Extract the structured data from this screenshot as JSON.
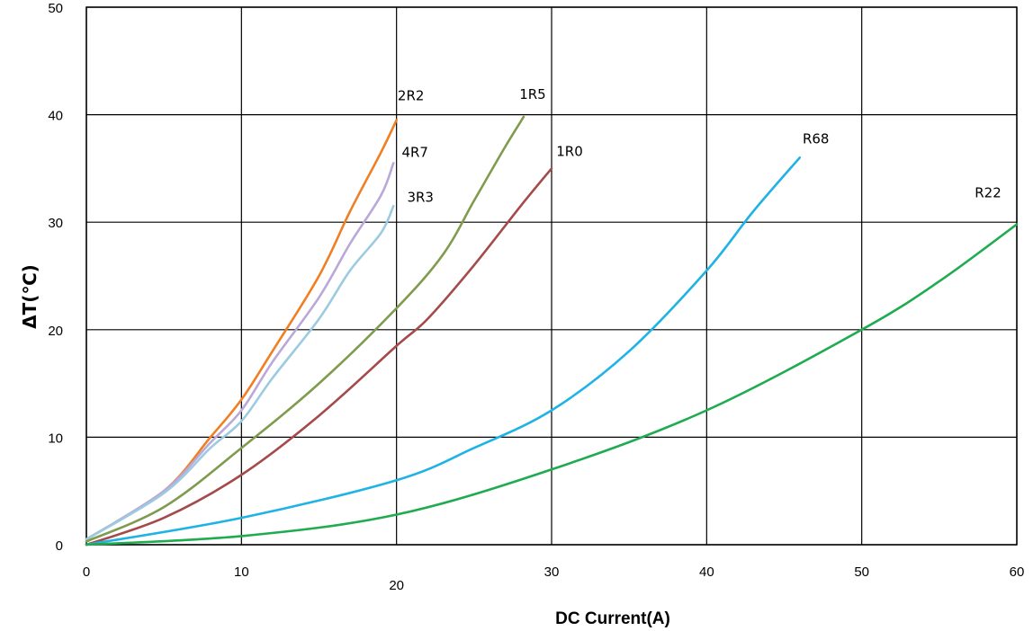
{
  "chart_data": {
    "type": "line",
    "xlabel": "DC Current(A)",
    "ylabel": "ΔT(℃)",
    "xlim": [
      0,
      60
    ],
    "ylim": [
      0,
      50
    ],
    "x_ticks": [
      0,
      10,
      20,
      30,
      40,
      50,
      60
    ],
    "y_ticks": [
      0,
      10,
      20,
      30,
      40,
      50
    ],
    "grid": true,
    "series": [
      {
        "name": "2R2",
        "color": "#f07f24",
        "x": [
          0,
          5,
          8,
          10,
          12,
          15,
          17,
          19,
          20
        ],
        "y": [
          0.5,
          5,
          10,
          13.5,
          18,
          25,
          31,
          36.5,
          39.5
        ]
      },
      {
        "name": "4R7",
        "color": "#b9a8d8",
        "x": [
          0,
          5,
          8,
          10,
          12,
          15,
          17,
          19,
          19.8
        ],
        "y": [
          0.5,
          5,
          9.5,
          12.5,
          17,
          23,
          28,
          32.5,
          35.5
        ]
      },
      {
        "name": "3R3",
        "color": "#9ccbe0",
        "x": [
          0,
          5,
          8,
          10,
          12,
          15,
          17,
          19,
          19.8
        ],
        "y": [
          0.5,
          4.8,
          9,
          11.5,
          15.5,
          21,
          25.5,
          29,
          31.5
        ]
      },
      {
        "name": "1R5",
        "color": "#7f9b4e",
        "x": [
          0,
          5,
          10,
          15,
          20,
          23,
          25,
          27,
          28.2
        ],
        "y": [
          0.3,
          3.5,
          9,
          15,
          22,
          27,
          32,
          37,
          39.8
        ]
      },
      {
        "name": "1R0",
        "color": "#a44a4a",
        "x": [
          0,
          5,
          10,
          15,
          20,
          22,
          25,
          28,
          30
        ],
        "y": [
          0,
          2.5,
          6.5,
          12,
          18.5,
          21,
          26,
          31.5,
          35
        ]
      },
      {
        "name": "R68",
        "color": "#1fb3e5",
        "x": [
          0,
          10,
          20,
          25,
          30,
          35,
          40,
          43,
          46
        ],
        "y": [
          0,
          2.5,
          6,
          9,
          12.5,
          18,
          25.5,
          31,
          36
        ]
      },
      {
        "name": "R22",
        "color": "#1fab4f",
        "x": [
          0,
          10,
          20,
          30,
          40,
          50,
          55,
          60
        ],
        "y": [
          0,
          0.8,
          2.8,
          7,
          12.5,
          20,
          24.5,
          29.8
        ]
      }
    ]
  }
}
